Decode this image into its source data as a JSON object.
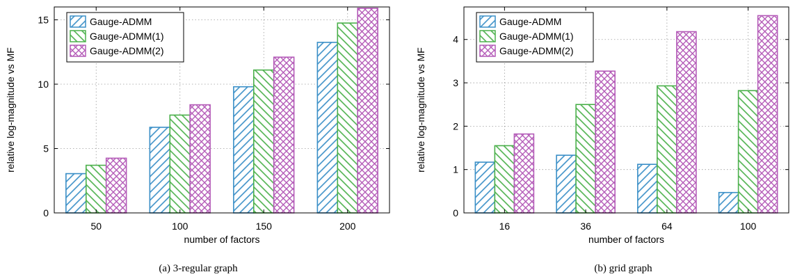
{
  "chart_data": [
    {
      "type": "bar",
      "caption": "(a) 3-regular graph",
      "xlabel": "number of factors",
      "ylabel": "relative log-magnitude vs MF",
      "categories": [
        "50",
        "100",
        "150",
        "200"
      ],
      "ylim": [
        0,
        16
      ],
      "yticks": [
        0,
        5,
        10,
        15
      ],
      "grid": true,
      "legend_position": "top-left",
      "series": [
        {
          "name": "Gauge-ADMM",
          "values": [
            3.05,
            6.65,
            9.8,
            13.25
          ]
        },
        {
          "name": "Gauge-ADMM(1)",
          "values": [
            3.7,
            7.6,
            11.1,
            14.75
          ]
        },
        {
          "name": "Gauge-ADMM(2)",
          "values": [
            4.25,
            8.4,
            12.1,
            15.9
          ]
        }
      ]
    },
    {
      "type": "bar",
      "caption": "(b) grid graph",
      "xlabel": "number of factors",
      "ylabel": "relative log-magnitude vs MF",
      "categories": [
        "16",
        "36",
        "64",
        "100"
      ],
      "ylim": [
        0,
        4.75
      ],
      "yticks": [
        0,
        1,
        2,
        3,
        4
      ],
      "grid": true,
      "legend_position": "top-left",
      "series": [
        {
          "name": "Gauge-ADMM",
          "values": [
            1.17,
            1.33,
            1.12,
            0.47
          ]
        },
        {
          "name": "Gauge-ADMM(1)",
          "values": [
            1.55,
            2.5,
            2.93,
            2.82
          ]
        },
        {
          "name": "Gauge-ADMM(2)",
          "values": [
            1.82,
            3.27,
            4.18,
            4.55
          ]
        }
      ]
    }
  ],
  "series_colors": [
    "#3a8fc7",
    "#4bb04b",
    "#b45bb8"
  ],
  "series_patterns": [
    "diagonal-back-hatch",
    "diagonal-forward-hatch",
    "crosshatch"
  ]
}
